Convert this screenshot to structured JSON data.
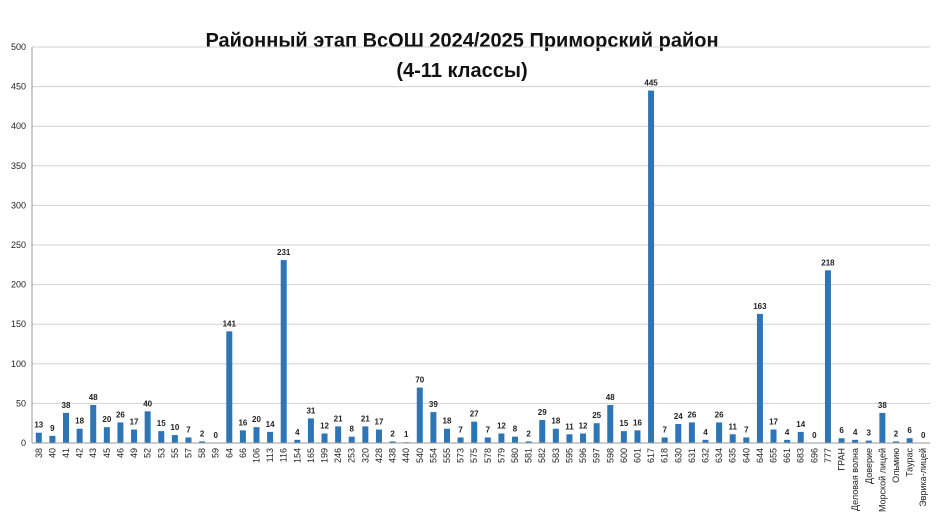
{
  "chart_data": {
    "type": "bar",
    "title": "Районный этап ВсОШ 2024/2025 Приморский район",
    "subtitle": "(4-11 классы)",
    "categories": [
      "38",
      "40",
      "41",
      "42",
      "43",
      "45",
      "46",
      "49",
      "52",
      "53",
      "55",
      "57",
      "58",
      "59",
      "64",
      "66",
      "106",
      "113",
      "116",
      "154",
      "165",
      "199",
      "246",
      "253",
      "320",
      "428",
      "438",
      "440",
      "540",
      "554",
      "555",
      "573",
      "575",
      "578",
      "579",
      "580",
      "581",
      "582",
      "583",
      "595",
      "596",
      "597",
      "598",
      "600",
      "601",
      "617",
      "618",
      "630",
      "631",
      "632",
      "634",
      "635",
      "640",
      "644",
      "655",
      "661",
      "683",
      "696",
      "777",
      "ГРАН",
      "Деловая волна",
      "Доверие",
      "Морской лицей",
      "Ольмию",
      "Таурас",
      "Эврика-лицей"
    ],
    "values": [
      13,
      9,
      38,
      18,
      48,
      20,
      26,
      17,
      40,
      15,
      10,
      7,
      2,
      0,
      141,
      16,
      20,
      14,
      231,
      4,
      31,
      12,
      21,
      8,
      21,
      17,
      2,
      1,
      70,
      39,
      18,
      7,
      27,
      7,
      12,
      8,
      2,
      29,
      18,
      11,
      12,
      25,
      48,
      15,
      16,
      445,
      7,
      24,
      26,
      4,
      26,
      11,
      7,
      163,
      17,
      4,
      14,
      0,
      218,
      6,
      4,
      3,
      38,
      2,
      6,
      0
    ],
    "color": "#2e75b6",
    "ylim": [
      0,
      500
    ],
    "yticks": [
      0,
      50,
      100,
      150,
      200,
      250,
      300,
      350,
      400,
      450,
      500
    ],
    "grid": true
  }
}
